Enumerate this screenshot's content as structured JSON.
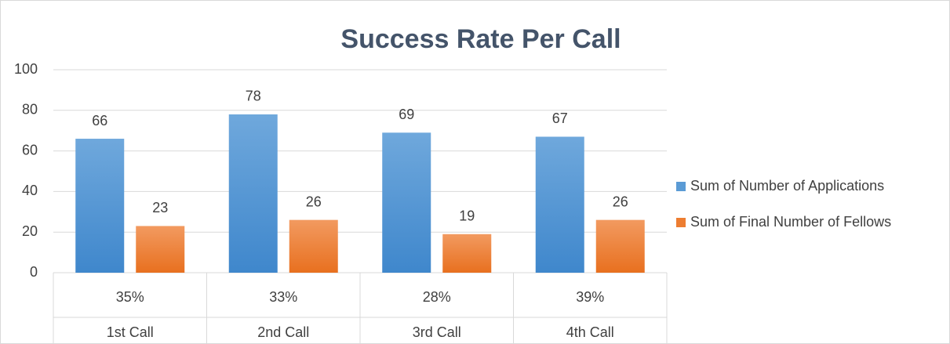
{
  "chart_data": {
    "type": "bar",
    "title": "Success Rate Per Call",
    "categories": [
      "1st Call",
      "2nd Call",
      "3rd Call",
      "4th Call"
    ],
    "category_sublabels": [
      "35%",
      "33%",
      "28%",
      "39%"
    ],
    "series": [
      {
        "name": "Sum of Number of Applications",
        "color": "#5b9bd5",
        "values": [
          66,
          78,
          69,
          67
        ]
      },
      {
        "name": "Sum of Final Number of Fellows",
        "color": "#ed7d31",
        "values": [
          23,
          26,
          19,
          26
        ]
      }
    ],
    "ylim": [
      0,
      100
    ],
    "yticks": [
      0,
      20,
      40,
      60,
      80,
      100
    ],
    "grid": true,
    "legend": "right",
    "data_labels": true
  }
}
